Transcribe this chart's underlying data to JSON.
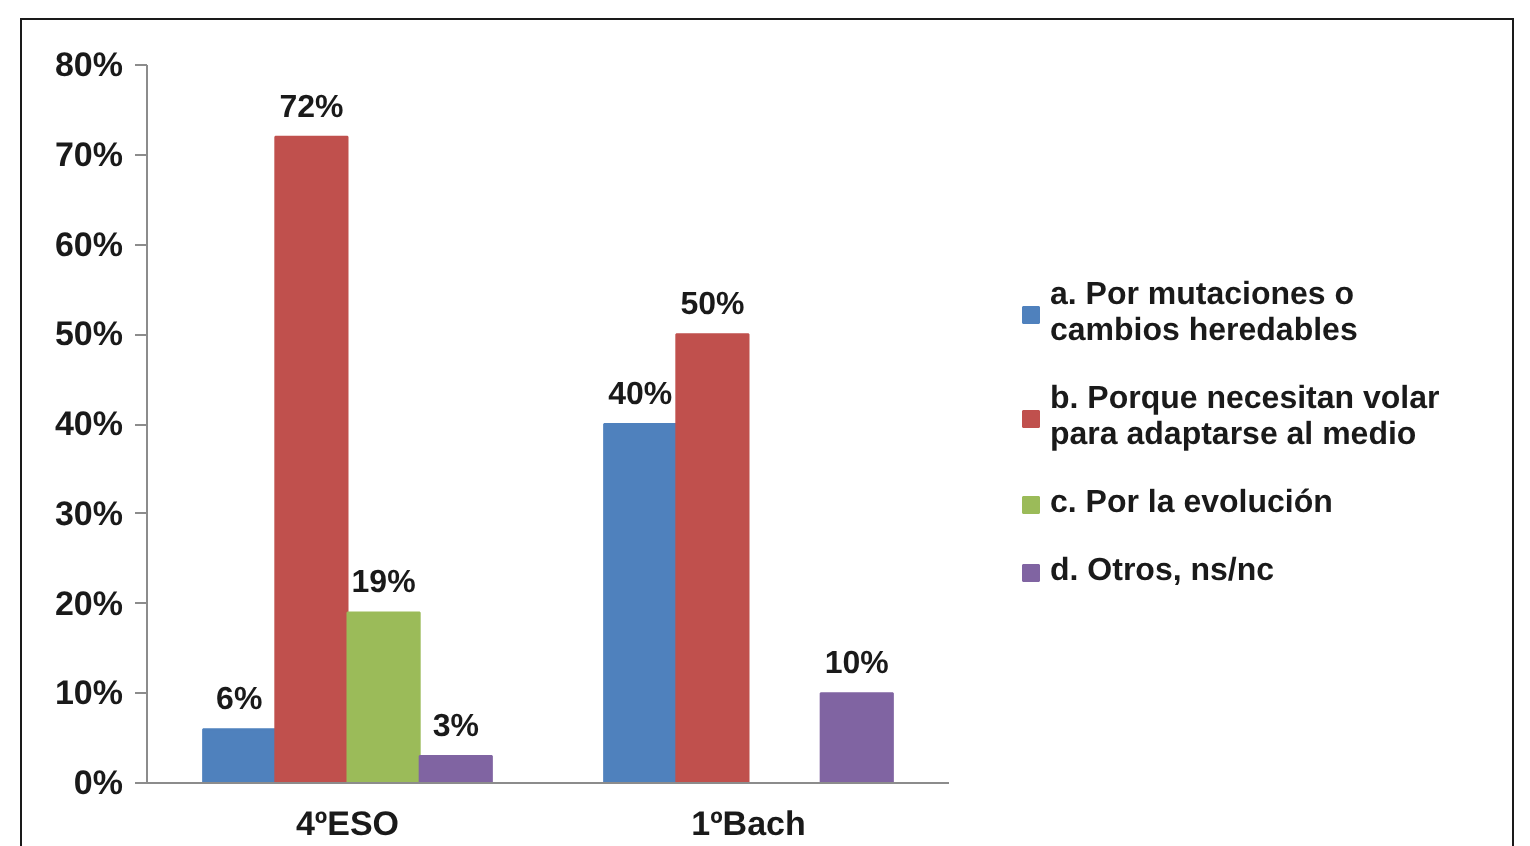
{
  "chart_data": {
    "type": "bar",
    "categories": [
      "4ºESO",
      "1ºBach"
    ],
    "series": [
      {
        "name": "a. Por mutaciones o cambios heredables",
        "color": "#4f81bd",
        "values": [
          6,
          40
        ],
        "value_labels": [
          "6%",
          "40%"
        ]
      },
      {
        "name": "b. Porque necesitan volar para adaptarse al medio",
        "color": "#c0504d",
        "values": [
          72,
          50
        ],
        "value_labels": [
          "72%",
          "50%"
        ]
      },
      {
        "name": "c. Por la evolución",
        "color": "#9bbb59",
        "values": [
          19,
          null
        ],
        "value_labels": [
          "19%",
          null
        ]
      },
      {
        "name": "d. Otros, ns/nc",
        "color": "#8064a2",
        "values": [
          3,
          10
        ],
        "value_labels": [
          "3%",
          "10%"
        ]
      }
    ],
    "ylim": [
      0,
      80
    ],
    "yticks": [
      {
        "value": 0,
        "label": "0%"
      },
      {
        "value": 10,
        "label": "10%"
      },
      {
        "value": 20,
        "label": "20%"
      },
      {
        "value": 30,
        "label": "30%"
      },
      {
        "value": 40,
        "label": "40%"
      },
      {
        "value": 50,
        "label": "50%"
      },
      {
        "value": 60,
        "label": "60%"
      },
      {
        "value": 70,
        "label": "70%"
      },
      {
        "value": 80,
        "label": "80%"
      }
    ],
    "grid": false,
    "legend": "right"
  }
}
